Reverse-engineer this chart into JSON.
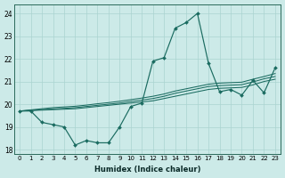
{
  "xlabel": "Humidex (Indice chaleur)",
  "bg_color": "#cceae8",
  "line_color": "#1a6b60",
  "grid_color": "#aad4d0",
  "xlim": [
    -0.5,
    23.5
  ],
  "ylim": [
    17.8,
    24.4
  ],
  "yticks": [
    18,
    19,
    20,
    21,
    22,
    23,
    24
  ],
  "xticks": [
    0,
    1,
    2,
    3,
    4,
    5,
    6,
    7,
    8,
    9,
    10,
    11,
    12,
    13,
    14,
    15,
    16,
    17,
    18,
    19,
    20,
    21,
    22,
    23
  ],
  "xtick_labels": [
    "0",
    "1",
    "2",
    "3",
    "4",
    "5",
    "6",
    "7",
    "8",
    "9",
    "10",
    "11",
    "12",
    "13",
    "14",
    "15",
    "16",
    "17",
    "18",
    "19",
    "20",
    "21",
    "22",
    "23"
  ],
  "main_series": [
    19.7,
    19.7,
    19.2,
    19.1,
    19.0,
    18.2,
    18.4,
    18.3,
    18.3,
    19.0,
    19.9,
    20.05,
    21.9,
    22.05,
    23.35,
    23.6,
    24.0,
    21.8,
    20.55,
    20.65,
    20.4,
    21.05,
    20.5,
    21.6
  ],
  "trend_lines": [
    [
      19.7,
      19.72,
      19.74,
      19.76,
      19.78,
      19.8,
      19.85,
      19.9,
      19.95,
      20.0,
      20.05,
      20.1,
      20.15,
      20.25,
      20.35,
      20.45,
      20.55,
      20.65,
      20.7,
      20.72,
      20.74,
      20.85,
      21.0,
      21.1
    ],
    [
      19.7,
      19.73,
      19.76,
      19.79,
      19.82,
      19.85,
      19.9,
      19.95,
      20.0,
      20.05,
      20.12,
      20.18,
      20.25,
      20.35,
      20.48,
      20.58,
      20.68,
      20.78,
      20.82,
      20.84,
      20.86,
      20.98,
      21.12,
      21.22
    ],
    [
      19.7,
      19.75,
      19.8,
      19.85,
      19.88,
      19.91,
      19.96,
      20.02,
      20.07,
      20.13,
      20.2,
      20.27,
      20.35,
      20.45,
      20.58,
      20.68,
      20.78,
      20.88,
      20.93,
      20.95,
      20.97,
      21.1,
      21.22,
      21.35
    ]
  ]
}
